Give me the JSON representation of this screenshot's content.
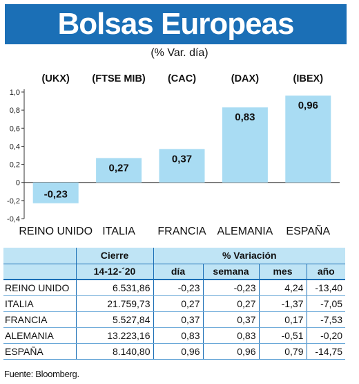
{
  "header": {
    "title": "Bolsas Europeas",
    "subtitle": "(% Var. día)"
  },
  "colors": {
    "banner": "#1b6fb6",
    "bar": "#a9dcf3",
    "table_header": "#bfe4f5",
    "rule": "#1b6fb6"
  },
  "chart_data": {
    "type": "bar",
    "categories": [
      "REINO UNIDO",
      "ITALIA",
      "FRANCIA",
      "ALEMANIA",
      "ESPAÑA"
    ],
    "index_codes": [
      "(UKX)",
      "(FTSE MIB)",
      "(CAC)",
      "(DAX)",
      "(IBEX)"
    ],
    "values": [
      -0.23,
      0.27,
      0.37,
      0.83,
      0.96
    ],
    "data_labels": [
      "-0,23",
      "0,27",
      "0,37",
      "0,83",
      "0,96"
    ],
    "ylim": [
      -0.4,
      1.0
    ],
    "yticks": [
      1.0,
      0.8,
      0.6,
      0.4,
      0.2,
      0,
      -0.2,
      -0.4
    ],
    "ytick_labels": [
      "1,0",
      "0,8",
      "0,6",
      "0,4",
      "0,2",
      "0",
      "-0,2",
      "-0,4"
    ],
    "grid": false
  },
  "table": {
    "header_close": "Cierre",
    "header_variation": "% Variación",
    "close_date": "14-12-´20",
    "columns": [
      "día",
      "semana",
      "mes",
      "año"
    ],
    "rows": [
      {
        "name": "REINO UNIDO",
        "close": "6.531,86",
        "day": "-0,23",
        "week": "-0,23",
        "month": "4,24",
        "year": "-13,40"
      },
      {
        "name": "ITALIA",
        "close": "21.759,73",
        "day": "0,27",
        "week": "0,27",
        "month": "-1,37",
        "year": "-7,05"
      },
      {
        "name": "FRANCIA",
        "close": "5.527,84",
        "day": "0,37",
        "week": "0,37",
        "month": "0,17",
        "year": "-7,53"
      },
      {
        "name": "ALEMANIA",
        "close": "13.223,16",
        "day": "0,83",
        "week": "0,83",
        "month": "-0,51",
        "year": "-0,20"
      },
      {
        "name": "ESPAÑA",
        "close": "8.140,80",
        "day": "0,96",
        "week": "0,96",
        "month": "0,79",
        "year": "-14,75"
      }
    ]
  },
  "source": "Fuente: Bloomberg."
}
